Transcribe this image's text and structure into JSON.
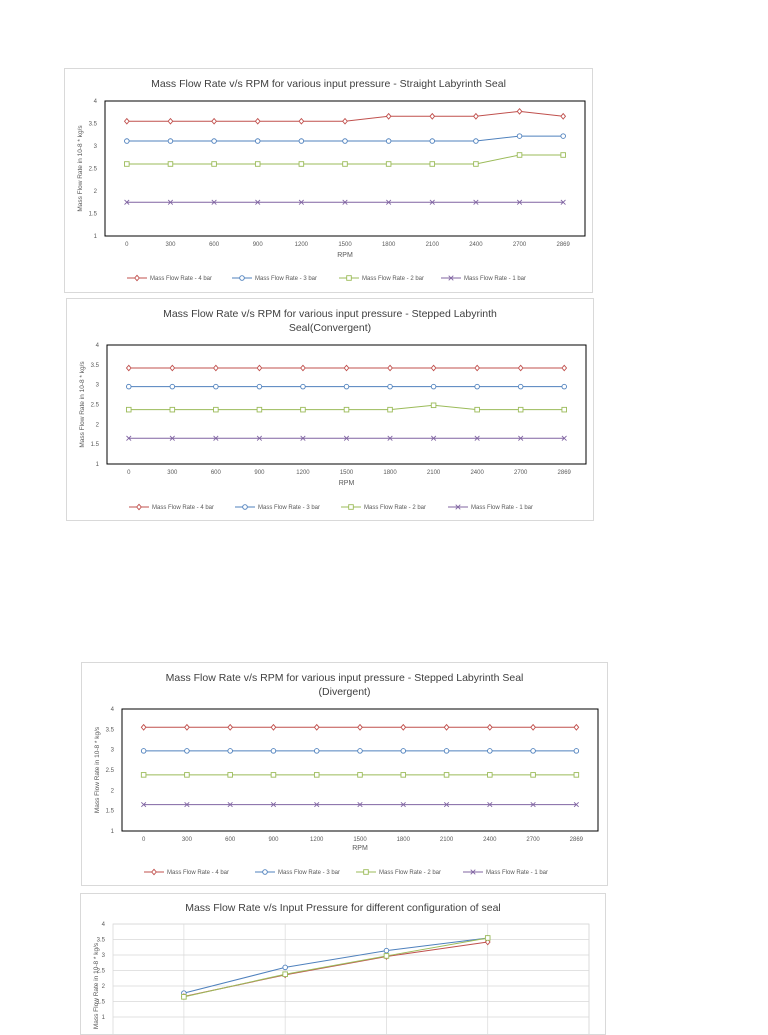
{
  "chart_data": [
    {
      "type": "line",
      "title": "Mass Flow Rate v/s RPM for various input pressure - Straight Labyrinth Seal",
      "title_lines": [
        "Mass Flow Rate v/s RPM for various input pressure - Straight Labyrinth Seal"
      ],
      "xlabel": "RPM",
      "ylabel": "Mass Flow Rate in 10-8 * kg/s",
      "ylim": [
        1,
        4
      ],
      "yticks": [
        "1",
        "1.5",
        "2",
        "2.5",
        "3",
        "3.5",
        "4"
      ],
      "categories": [
        "0",
        "300",
        "600",
        "900",
        "1200",
        "1500",
        "1800",
        "2100",
        "2400",
        "2700",
        "2869"
      ],
      "grid": false,
      "legend_position": "bottom",
      "series": [
        {
          "name": "Mass Flow Rate - 4 bar",
          "color": "#c0504d",
          "marker": "diamond",
          "values": [
            3.55,
            3.55,
            3.55,
            3.55,
            3.55,
            3.55,
            3.66,
            3.66,
            3.66,
            3.77,
            3.66
          ]
        },
        {
          "name": "Mass Flow Rate - 3 bar",
          "color": "#4f81bd",
          "marker": "circle",
          "values": [
            3.11,
            3.11,
            3.11,
            3.11,
            3.11,
            3.11,
            3.11,
            3.11,
            3.11,
            3.22,
            3.22
          ]
        },
        {
          "name": "Mass Flow Rate - 2 bar",
          "color": "#9bbb59",
          "marker": "square",
          "values": [
            2.6,
            2.6,
            2.6,
            2.6,
            2.6,
            2.6,
            2.6,
            2.6,
            2.6,
            2.8,
            2.8
          ]
        },
        {
          "name": "Mass Flow Rate - 1 bar",
          "color": "#8064a2",
          "marker": "x",
          "values": [
            1.75,
            1.75,
            1.75,
            1.75,
            1.75,
            1.75,
            1.75,
            1.75,
            1.75,
            1.75,
            1.75
          ]
        }
      ]
    },
    {
      "type": "line",
      "title": "Mass Flow Rate v/s RPM for various input pressure - Stepped Labyrinth Seal(Convergent)",
      "title_lines": [
        "Mass Flow Rate v/s RPM for various input pressure - Stepped Labyrinth",
        "Seal(Convergent)"
      ],
      "xlabel": "RPM",
      "ylabel": "Mass Flow Rate in 10-8 * kg/s",
      "ylim": [
        1,
        4
      ],
      "yticks": [
        "1",
        "1.5",
        "2",
        "2.5",
        "3",
        "3.5",
        "4"
      ],
      "categories": [
        "0",
        "300",
        "600",
        "900",
        "1200",
        "1500",
        "1800",
        "2100",
        "2400",
        "2700",
        "2869"
      ],
      "grid": false,
      "legend_position": "bottom",
      "series": [
        {
          "name": "Mass Flow Rate - 4 bar",
          "color": "#c0504d",
          "marker": "diamond",
          "values": [
            3.42,
            3.42,
            3.42,
            3.42,
            3.42,
            3.42,
            3.42,
            3.42,
            3.42,
            3.42,
            3.42
          ]
        },
        {
          "name": "Mass Flow Rate - 3 bar",
          "color": "#4f81bd",
          "marker": "circle",
          "values": [
            2.95,
            2.95,
            2.95,
            2.95,
            2.95,
            2.95,
            2.95,
            2.95,
            2.95,
            2.95,
            2.95
          ]
        },
        {
          "name": "Mass Flow Rate - 2 bar",
          "color": "#9bbb59",
          "marker": "square",
          "values": [
            2.37,
            2.37,
            2.37,
            2.37,
            2.37,
            2.37,
            2.37,
            2.48,
            2.37,
            2.37,
            2.37
          ]
        },
        {
          "name": "Mass Flow Rate - 1 bar",
          "color": "#8064a2",
          "marker": "x",
          "values": [
            1.65,
            1.65,
            1.65,
            1.65,
            1.65,
            1.65,
            1.65,
            1.65,
            1.65,
            1.65,
            1.65
          ]
        }
      ]
    },
    {
      "type": "line",
      "title": "Mass Flow Rate v/s RPM for various input pressure - Stepped Labyrinth Seal (Divergent)",
      "title_lines": [
        "Mass Flow Rate v/s RPM for various input pressure - Stepped Labyrinth Seal",
        "(Divergent)"
      ],
      "xlabel": "RPM",
      "ylabel": "Mass Flow Rate in 10-8 * kg/s",
      "ylim": [
        1,
        4
      ],
      "yticks": [
        "1",
        "1.5",
        "2",
        "2.5",
        "3",
        "3.5",
        "4"
      ],
      "categories": [
        "0",
        "300",
        "600",
        "900",
        "1200",
        "1500",
        "1800",
        "2100",
        "2400",
        "2700",
        "2869"
      ],
      "grid": false,
      "legend_position": "bottom",
      "series": [
        {
          "name": "Mass Flow Rate - 4 bar",
          "color": "#c0504d",
          "marker": "diamond",
          "values": [
            3.55,
            3.55,
            3.55,
            3.55,
            3.55,
            3.55,
            3.55,
            3.55,
            3.55,
            3.55,
            3.55
          ]
        },
        {
          "name": "Mass Flow Rate - 3 bar",
          "color": "#4f81bd",
          "marker": "circle",
          "values": [
            2.97,
            2.97,
            2.97,
            2.97,
            2.97,
            2.97,
            2.97,
            2.97,
            2.97,
            2.97,
            2.97
          ]
        },
        {
          "name": "Mass Flow Rate - 2 bar",
          "color": "#9bbb59",
          "marker": "square",
          "values": [
            2.38,
            2.38,
            2.38,
            2.38,
            2.38,
            2.38,
            2.38,
            2.38,
            2.38,
            2.38,
            2.38
          ]
        },
        {
          "name": "Mass Flow Rate - 1 bar",
          "color": "#8064a2",
          "marker": "x",
          "values": [
            1.65,
            1.65,
            1.65,
            1.65,
            1.65,
            1.65,
            1.65,
            1.65,
            1.65,
            1.65,
            1.65
          ]
        }
      ]
    },
    {
      "type": "line",
      "title": "Mass Flow Rate v/s Input Pressure for different configuration of seal",
      "title_lines": [
        "Mass Flow Rate v/s Input Pressure for different configuration of seal"
      ],
      "xlabel": "",
      "ylabel": "Mass Flow Rate in 10-8 * kg/s",
      "ylim": [
        0,
        4
      ],
      "yticks": [
        "1",
        "1.5",
        "2",
        "2.5",
        "3",
        "3.5",
        "4"
      ],
      "x": [
        1,
        2,
        3,
        4
      ],
      "xlim": [
        0.3,
        5
      ],
      "grid": true,
      "series": [
        {
          "color": "#4f81bd",
          "marker": "circle",
          "values": [
            1.77,
            2.6,
            3.14,
            3.55
          ]
        },
        {
          "color": "#c0504d",
          "marker": "diamond",
          "values": [
            1.66,
            2.36,
            2.95,
            3.42
          ]
        },
        {
          "color": "#9bbb59",
          "marker": "square",
          "values": [
            1.65,
            2.38,
            2.97,
            3.55
          ]
        }
      ]
    }
  ]
}
